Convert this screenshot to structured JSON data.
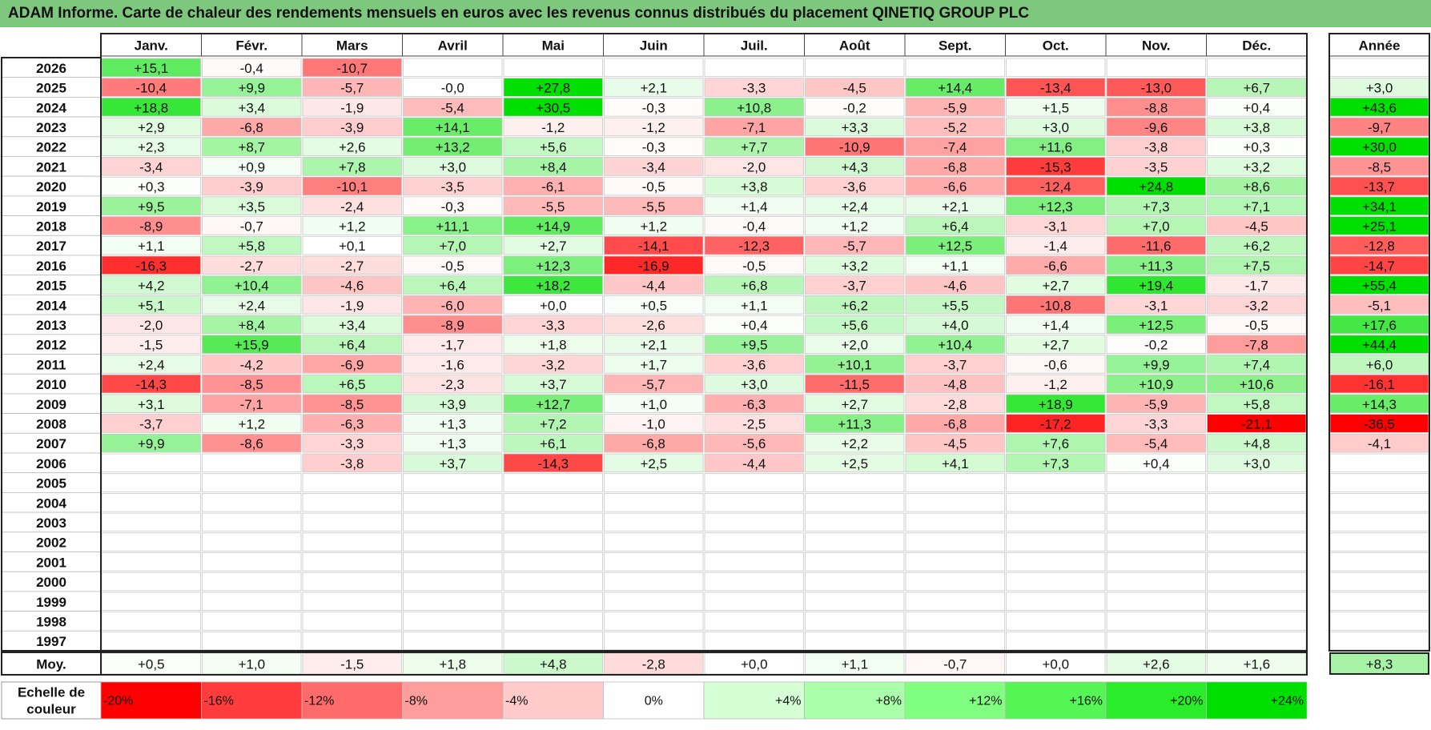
{
  "title": "ADAM Informe. Carte de chaleur des rendements mensuels en euros avec les revenus connus distribués du placement QINETIQ GROUP PLC",
  "chart_data": {
    "type": "heatmap",
    "title": "ADAM Informe. Carte de chaleur des rendements mensuels en euros avec les revenus connus distribués du placement QINETIQ GROUP PLC",
    "months": [
      "Janv.",
      "Févr.",
      "Mars",
      "Avril",
      "Mai",
      "Juin",
      "Juil.",
      "Août",
      "Sept.",
      "Oct.",
      "Nov.",
      "Déc."
    ],
    "year_header": "Année",
    "avg_label": "Moy.",
    "rows": [
      {
        "year": "2026",
        "values": [
          "+15,1",
          "-0,4",
          "-10,7",
          "",
          "",
          "",
          "",
          "",
          "",
          "",
          "",
          ""
        ],
        "annual": ""
      },
      {
        "year": "2025",
        "values": [
          "-10,4",
          "+9,9",
          "-5,7",
          "-0,0",
          "+27,8",
          "+2,1",
          "-3,3",
          "-4,5",
          "+14,4",
          "-13,4",
          "-13,0",
          "+6,7"
        ],
        "annual": "+3,0"
      },
      {
        "year": "2024",
        "values": [
          "+18,8",
          "+3,4",
          "-1,9",
          "-5,4",
          "+30,5",
          "-0,3",
          "+10,8",
          "-0,2",
          "-5,9",
          "+1,5",
          "-8,8",
          "+0,4"
        ],
        "annual": "+43,6"
      },
      {
        "year": "2023",
        "values": [
          "+2,9",
          "-6,8",
          "-3,9",
          "+14,1",
          "-1,2",
          "-1,2",
          "-7,1",
          "+3,3",
          "-5,2",
          "+3,0",
          "-9,6",
          "+3,8"
        ],
        "annual": "-9,7"
      },
      {
        "year": "2022",
        "values": [
          "+2,3",
          "+8,7",
          "+2,6",
          "+13,2",
          "+5,6",
          "-0,3",
          "+7,7",
          "-10,9",
          "-7,4",
          "+11,6",
          "-3,8",
          "+0,3"
        ],
        "annual": "+30,0"
      },
      {
        "year": "2021",
        "values": [
          "-3,4",
          "+0,9",
          "+7,8",
          "+3,0",
          "+8,4",
          "-3,4",
          "-2,0",
          "+4,3",
          "-6,8",
          "-15,3",
          "-3,5",
          "+3,2"
        ],
        "annual": "-8,5"
      },
      {
        "year": "2020",
        "values": [
          "+0,3",
          "-3,9",
          "-10,1",
          "-3,5",
          "-6,1",
          "-0,5",
          "+3,8",
          "-3,6",
          "-6,6",
          "-12,4",
          "+24,8",
          "+8,6"
        ],
        "annual": "-13,7"
      },
      {
        "year": "2019",
        "values": [
          "+9,5",
          "+3,5",
          "-2,4",
          "-0,3",
          "-5,5",
          "-5,5",
          "+1,4",
          "+2,4",
          "+2,1",
          "+12,3",
          "+7,3",
          "+7,1"
        ],
        "annual": "+34,1"
      },
      {
        "year": "2018",
        "values": [
          "-8,9",
          "-0,7",
          "+1,2",
          "+11,1",
          "+14,9",
          "+1,2",
          "-0,4",
          "+1,2",
          "+6,4",
          "-3,1",
          "+7,0",
          "-4,5"
        ],
        "annual": "+25,1"
      },
      {
        "year": "2017",
        "values": [
          "+1,1",
          "+5,8",
          "+0,1",
          "+7,0",
          "+2,7",
          "-14,1",
          "-12,3",
          "-5,7",
          "+12,5",
          "-1,4",
          "-11,6",
          "+6,2"
        ],
        "annual": "-12,8"
      },
      {
        "year": "2016",
        "values": [
          "-16,3",
          "-2,7",
          "-2,7",
          "-0,5",
          "+12,3",
          "-16,9",
          "-0,5",
          "+3,2",
          "+1,1",
          "-6,6",
          "+11,3",
          "+7,5"
        ],
        "annual": "-14,7"
      },
      {
        "year": "2015",
        "values": [
          "+4,2",
          "+10,4",
          "-4,6",
          "+6,4",
          "+18,2",
          "-4,4",
          "+6,8",
          "-3,7",
          "-4,6",
          "+2,7",
          "+19,4",
          "-1,7"
        ],
        "annual": "+55,4"
      },
      {
        "year": "2014",
        "values": [
          "+5,1",
          "+2,4",
          "-1,9",
          "-6,0",
          "+0,0",
          "+0,5",
          "+1,1",
          "+6,2",
          "+5,5",
          "-10,8",
          "-3,1",
          "-3,2"
        ],
        "annual": "-5,1"
      },
      {
        "year": "2013",
        "values": [
          "-2,0",
          "+8,4",
          "+3,4",
          "-8,9",
          "-3,3",
          "-2,6",
          "+0,4",
          "+5,6",
          "+4,0",
          "+1,4",
          "+12,5",
          "-0,5"
        ],
        "annual": "+17,6"
      },
      {
        "year": "2012",
        "values": [
          "-1,5",
          "+15,9",
          "+6,4",
          "-1,7",
          "+1,8",
          "+2,1",
          "+9,5",
          "+2,0",
          "+10,4",
          "+2,7",
          "-0,2",
          "-7,8"
        ],
        "annual": "+44,4"
      },
      {
        "year": "2011",
        "values": [
          "+2,4",
          "-4,2",
          "-6,9",
          "-1,6",
          "-3,2",
          "+1,7",
          "-3,6",
          "+10,1",
          "-3,7",
          "-0,6",
          "+9,9",
          "+7,4"
        ],
        "annual": "+6,0"
      },
      {
        "year": "2010",
        "values": [
          "-14,3",
          "-8,5",
          "+6,5",
          "-2,3",
          "+3,7",
          "-5,7",
          "+3,0",
          "-11,5",
          "-4,8",
          "-1,2",
          "+10,9",
          "+10,6"
        ],
        "annual": "-16,1"
      },
      {
        "year": "2009",
        "values": [
          "+3,1",
          "-7,1",
          "-8,5",
          "+3,9",
          "+12,7",
          "+1,0",
          "-6,3",
          "+2,7",
          "-2,8",
          "+18,9",
          "-5,9",
          "+5,8"
        ],
        "annual": "+14,3"
      },
      {
        "year": "2008",
        "values": [
          "-3,7",
          "+1,2",
          "-6,3",
          "+1,3",
          "+7,2",
          "-1,0",
          "-2,5",
          "+11,3",
          "-6,8",
          "-17,2",
          "-3,3",
          "-21,1"
        ],
        "annual": "-36,5"
      },
      {
        "year": "2007",
        "values": [
          "+9,9",
          "-8,6",
          "-3,3",
          "+1,3",
          "+6,1",
          "-6,8",
          "-5,6",
          "+2,2",
          "-4,5",
          "+7,6",
          "-5,4",
          "+4,8"
        ],
        "annual": "-4,1"
      },
      {
        "year": "2006",
        "values": [
          "",
          "",
          "-3,8",
          "+3,7",
          "-14,3",
          "+2,5",
          "-4,4",
          "+2,5",
          "+4,1",
          "+7,3",
          "+0,4",
          "+3,0"
        ],
        "annual": ""
      },
      {
        "year": "2005",
        "values": [
          "",
          "",
          "",
          "",
          "",
          "",
          "",
          "",
          "",
          "",
          "",
          ""
        ],
        "annual": ""
      },
      {
        "year": "2004",
        "values": [
          "",
          "",
          "",
          "",
          "",
          "",
          "",
          "",
          "",
          "",
          "",
          ""
        ],
        "annual": ""
      },
      {
        "year": "2003",
        "values": [
          "",
          "",
          "",
          "",
          "",
          "",
          "",
          "",
          "",
          "",
          "",
          ""
        ],
        "annual": ""
      },
      {
        "year": "2002",
        "values": [
          "",
          "",
          "",
          "",
          "",
          "",
          "",
          "",
          "",
          "",
          "",
          ""
        ],
        "annual": ""
      },
      {
        "year": "2001",
        "values": [
          "",
          "",
          "",
          "",
          "",
          "",
          "",
          "",
          "",
          "",
          "",
          ""
        ],
        "annual": ""
      },
      {
        "year": "2000",
        "values": [
          "",
          "",
          "",
          "",
          "",
          "",
          "",
          "",
          "",
          "",
          "",
          ""
        ],
        "annual": ""
      },
      {
        "year": "1999",
        "values": [
          "",
          "",
          "",
          "",
          "",
          "",
          "",
          "",
          "",
          "",
          "",
          ""
        ],
        "annual": ""
      },
      {
        "year": "1998",
        "values": [
          "",
          "",
          "",
          "",
          "",
          "",
          "",
          "",
          "",
          "",
          "",
          ""
        ],
        "annual": ""
      },
      {
        "year": "1997",
        "values": [
          "",
          "",
          "",
          "",
          "",
          "",
          "",
          "",
          "",
          "",
          "",
          ""
        ],
        "annual": ""
      }
    ],
    "average": {
      "values": [
        "+0,5",
        "+1,0",
        "-1,5",
        "+1,8",
        "+4,8",
        "-2,8",
        "+0,0",
        "+1,1",
        "-0,7",
        "+0,0",
        "+2,6",
        "+1,6"
      ],
      "annual": "+8,3"
    },
    "legend": {
      "label": "Echelle de couleur",
      "items": [
        "-20%",
        "-16%",
        "-12%",
        "-8%",
        "-4%",
        "0%",
        "+4%",
        "+8%",
        "+12%",
        "+16%",
        "+20%",
        "+24%"
      ],
      "colors": [
        "#ff0000",
        "#ff3c3c",
        "#ff6a6a",
        "#ff9c9c",
        "#ffcaca",
        "#ffffff",
        "#d5ffd5",
        "#aaffaa",
        "#80ff80",
        "#55f555",
        "#2bec2b",
        "#00e000"
      ]
    }
  }
}
